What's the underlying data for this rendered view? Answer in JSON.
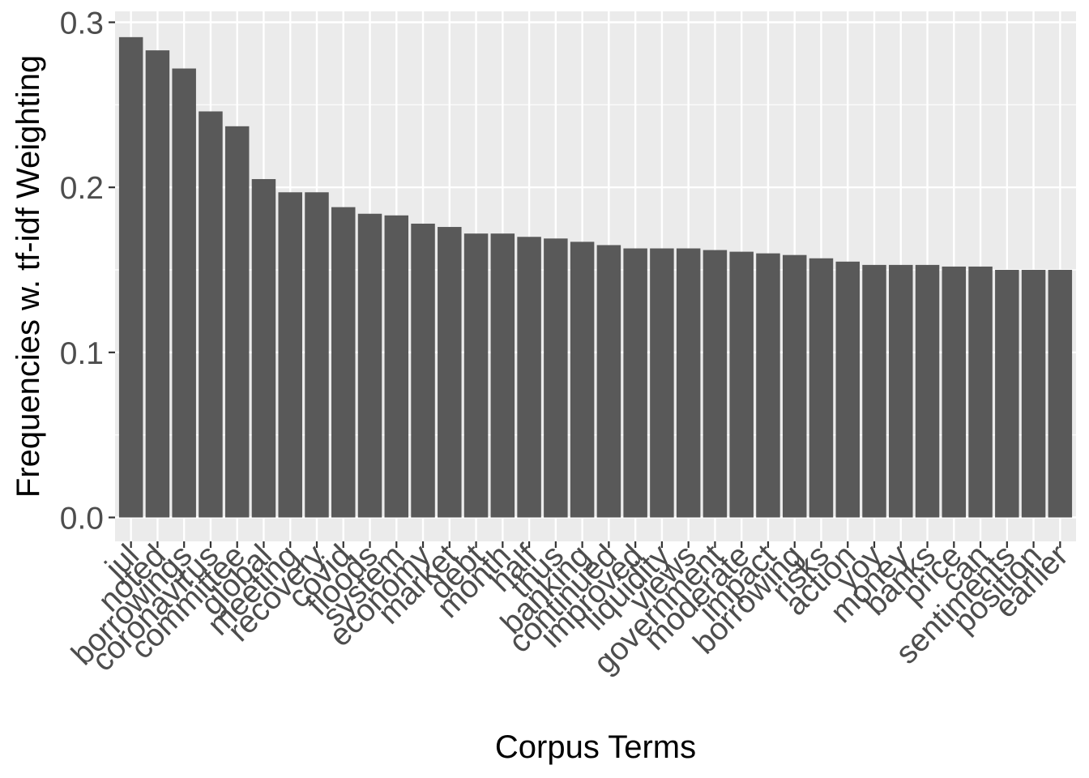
{
  "colors": {
    "panel_background": "#ebebeb",
    "grid": "#ffffff",
    "bar_fill": "#595959",
    "tick_text": "#4d4d4d",
    "axis_title": "#000000"
  },
  "chart_data": {
    "type": "bar",
    "title": "",
    "xlabel": "Corpus Terms",
    "ylabel": "Frequencies w. tf-idf Weighting",
    "ylim": [
      0,
      0.3
    ],
    "yticks": [
      "0.0",
      "0.1",
      "0.2",
      "0.3"
    ],
    "ytick_values": [
      0,
      0.1,
      0.2,
      0.3
    ],
    "grid": true,
    "legend": "none",
    "categories": [
      "jul",
      "noted",
      "borrowings",
      "coronavirus",
      "committee",
      "global",
      "meeting",
      "recovery",
      "covid",
      "floods",
      "system",
      "economy",
      "market",
      "debt",
      "month",
      "half",
      "thus",
      "banking",
      "continued",
      "improved",
      "liquidity",
      "views",
      "government",
      "moderate",
      "impact",
      "borrowing",
      "risks",
      "action",
      "yoy",
      "money",
      "banks",
      "price",
      "can",
      "sentiments",
      "position",
      "earlier"
    ],
    "values": [
      0.291,
      0.283,
      0.272,
      0.246,
      0.237,
      0.205,
      0.197,
      0.197,
      0.188,
      0.184,
      0.183,
      0.178,
      0.176,
      0.172,
      0.172,
      0.17,
      0.169,
      0.167,
      0.165,
      0.163,
      0.163,
      0.163,
      0.162,
      0.161,
      0.16,
      0.159,
      0.157,
      0.155,
      0.153,
      0.153,
      0.153,
      0.152,
      0.152,
      0.15,
      0.15,
      0.15
    ]
  }
}
